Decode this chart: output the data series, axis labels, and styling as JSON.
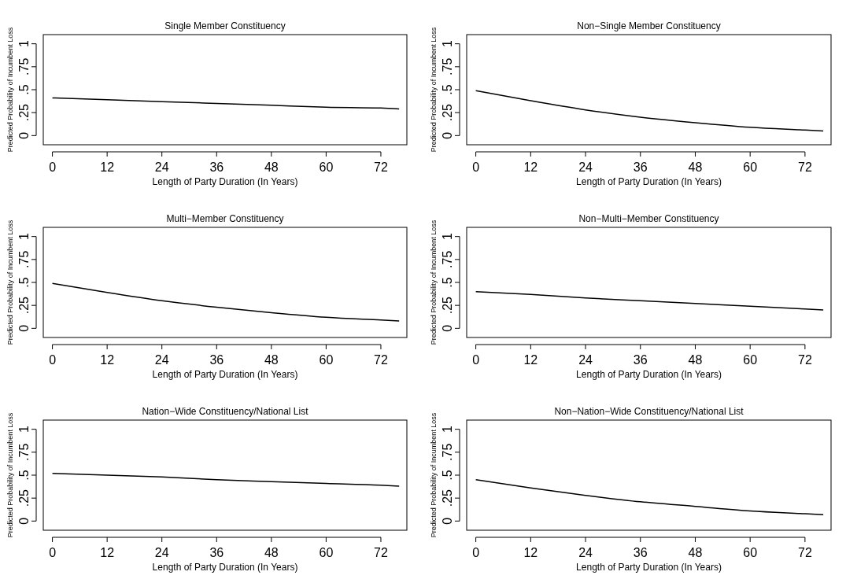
{
  "chart_data": [
    {
      "type": "line",
      "title": "Single Member Constituency",
      "xlabel": "Length of Party Duration (In Years)",
      "ylabel": "Predicted Probability of Incumbent Loss",
      "x": [
        0,
        12,
        24,
        36,
        48,
        60,
        72,
        76
      ],
      "values": [
        0.41,
        0.39,
        0.37,
        0.35,
        0.33,
        0.31,
        0.3,
        0.29
      ],
      "color": "#000000",
      "xlim": [
        -2,
        77.7
      ],
      "ylim": [
        -0.1,
        1.1
      ],
      "xticks": [
        0,
        12,
        24,
        36,
        48,
        60,
        72
      ],
      "yticks": [
        {
          "value": 0,
          "label": "0"
        },
        {
          "value": 0.25,
          "label": ".25"
        },
        {
          "value": 0.5,
          "label": ".5"
        },
        {
          "value": 0.75,
          "label": ".75"
        },
        {
          "value": 1,
          "label": "1"
        }
      ],
      "grid": false
    },
    {
      "type": "line",
      "title": "Non−Single Member Constituency",
      "xlabel": "Length of Party Duration (In Years)",
      "ylabel": "Predicted Probability of Incumbent Loss",
      "x": [
        0,
        12,
        24,
        36,
        48,
        60,
        72,
        76
      ],
      "values": [
        0.49,
        0.38,
        0.28,
        0.2,
        0.14,
        0.09,
        0.06,
        0.05
      ],
      "color": "#000000",
      "xlim": [
        -2,
        77.7
      ],
      "ylim": [
        -0.1,
        1.1
      ],
      "xticks": [
        0,
        12,
        24,
        36,
        48,
        60,
        72
      ],
      "yticks": [
        {
          "value": 0,
          "label": "0"
        },
        {
          "value": 0.25,
          "label": ".25"
        },
        {
          "value": 0.5,
          "label": ".5"
        },
        {
          "value": 0.75,
          "label": ".75"
        },
        {
          "value": 1,
          "label": "1"
        }
      ],
      "grid": false
    },
    {
      "type": "line",
      "title": "Multi−Member Constituency",
      "xlabel": "Length of Party Duration (In Years)",
      "ylabel": "Predicted Probability of Incumbent Loss",
      "x": [
        0,
        12,
        24,
        36,
        48,
        60,
        72,
        76
      ],
      "values": [
        0.49,
        0.39,
        0.3,
        0.23,
        0.17,
        0.12,
        0.09,
        0.08
      ],
      "color": "#000000",
      "xlim": [
        -2,
        77.7
      ],
      "ylim": [
        -0.1,
        1.1
      ],
      "xticks": [
        0,
        12,
        24,
        36,
        48,
        60,
        72
      ],
      "yticks": [
        {
          "value": 0,
          "label": "0"
        },
        {
          "value": 0.25,
          "label": ".25"
        },
        {
          "value": 0.5,
          "label": ".5"
        },
        {
          "value": 0.75,
          "label": ".75"
        },
        {
          "value": 1,
          "label": "1"
        }
      ],
      "grid": false
    },
    {
      "type": "line",
      "title": "Non−Multi−Member Constituency",
      "xlabel": "Length of Party Duration (In Years)",
      "ylabel": "Predicted Probability of Incumbent Loss",
      "x": [
        0,
        12,
        24,
        36,
        48,
        60,
        72,
        76
      ],
      "values": [
        0.4,
        0.37,
        0.33,
        0.3,
        0.27,
        0.24,
        0.21,
        0.2
      ],
      "color": "#000000",
      "xlim": [
        -2,
        77.7
      ],
      "ylim": [
        -0.1,
        1.1
      ],
      "xticks": [
        0,
        12,
        24,
        36,
        48,
        60,
        72
      ],
      "yticks": [
        {
          "value": 0,
          "label": "0"
        },
        {
          "value": 0.25,
          "label": ".25"
        },
        {
          "value": 0.5,
          "label": ".5"
        },
        {
          "value": 0.75,
          "label": ".75"
        },
        {
          "value": 1,
          "label": "1"
        }
      ],
      "grid": false
    },
    {
      "type": "line",
      "title": "Nation−Wide Constituency/National List",
      "xlabel": "Length of Party Duration (In Years)",
      "ylabel": "Predicted Probability of Incumbent Loss",
      "x": [
        0,
        12,
        24,
        36,
        48,
        60,
        72,
        76
      ],
      "values": [
        0.52,
        0.5,
        0.48,
        0.45,
        0.43,
        0.41,
        0.39,
        0.38
      ],
      "color": "#000000",
      "xlim": [
        -2,
        77.7
      ],
      "ylim": [
        -0.1,
        1.1
      ],
      "xticks": [
        0,
        12,
        24,
        36,
        48,
        60,
        72
      ],
      "yticks": [
        {
          "value": 0,
          "label": "0"
        },
        {
          "value": 0.25,
          "label": ".25"
        },
        {
          "value": 0.5,
          "label": ".5"
        },
        {
          "value": 0.75,
          "label": ".75"
        },
        {
          "value": 1,
          "label": "1"
        }
      ],
      "grid": false
    },
    {
      "type": "line",
      "title": "Non−Nation−Wide Constituency/National List",
      "xlabel": "Length of Party Duration (In Years)",
      "ylabel": "Predicted Probability of Incumbent Loss",
      "x": [
        0,
        12,
        24,
        36,
        48,
        60,
        72,
        76
      ],
      "values": [
        0.45,
        0.36,
        0.28,
        0.21,
        0.16,
        0.11,
        0.08,
        0.07
      ],
      "color": "#000000",
      "xlim": [
        -2,
        77.7
      ],
      "ylim": [
        -0.1,
        1.1
      ],
      "xticks": [
        0,
        12,
        24,
        36,
        48,
        60,
        72
      ],
      "yticks": [
        {
          "value": 0,
          "label": "0"
        },
        {
          "value": 0.25,
          "label": ".25"
        },
        {
          "value": 0.5,
          "label": ".5"
        },
        {
          "value": 0.75,
          "label": ".75"
        },
        {
          "value": 1,
          "label": "1"
        }
      ],
      "grid": false
    }
  ]
}
